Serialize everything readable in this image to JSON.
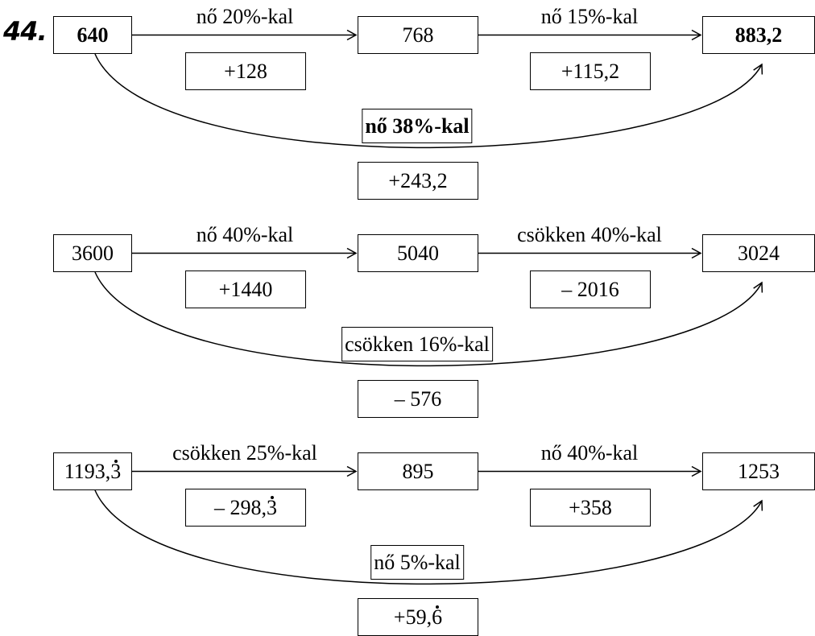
{
  "problem_number": "44.",
  "rows": [
    {
      "start": {
        "value": "640",
        "bold": true
      },
      "middle": {
        "value": "768",
        "bold": false
      },
      "end": {
        "value": "883,2",
        "bold": true
      },
      "step1": {
        "label": "nő 20%-kal",
        "diff": {
          "text": "+128"
        }
      },
      "step2": {
        "label": "nő 15%-kal",
        "diff": {
          "text": "+115,2"
        }
      },
      "overall": {
        "label": "nő 38%-kal",
        "bold": true,
        "diff": {
          "text": "+243,2"
        }
      }
    },
    {
      "start": {
        "value": "3600",
        "bold": false
      },
      "middle": {
        "value": "5040",
        "bold": false
      },
      "end": {
        "value": "3024",
        "bold": false
      },
      "step1": {
        "label": "nő 40%-kal",
        "diff": {
          "text": "+1440"
        }
      },
      "step2": {
        "label": "csökken 40%-kal",
        "diff": {
          "text": "– 2016"
        }
      },
      "overall": {
        "label": "csökken 16%-kal",
        "bold": false,
        "diff": {
          "text": "– 576"
        }
      }
    },
    {
      "start": {
        "value": "1193,3",
        "pre": "1193,",
        "rep": "3",
        "bold": false
      },
      "middle": {
        "value": "895",
        "bold": false
      },
      "end": {
        "value": "1253",
        "bold": false
      },
      "step1": {
        "label": "csökken 25%-kal",
        "diff": {
          "text": "– 298,3",
          "pre": "– 298,",
          "rep": "3"
        }
      },
      "step2": {
        "label": "nő 40%-kal",
        "diff": {
          "text": "+358"
        }
      },
      "overall": {
        "label": "nő 5%-kal",
        "bold": false,
        "diff": {
          "text": "+59,6",
          "pre": "+59,",
          "rep": "6"
        }
      }
    }
  ]
}
